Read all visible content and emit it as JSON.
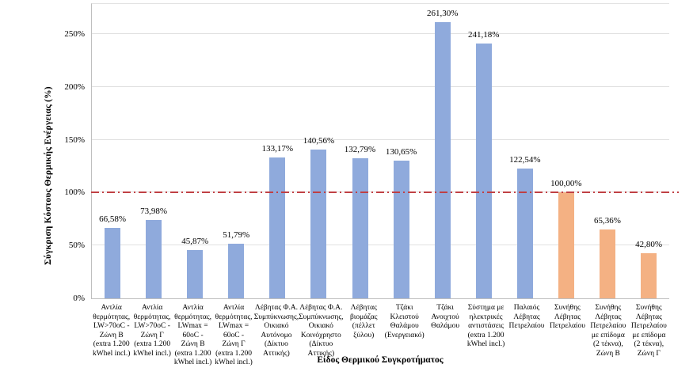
{
  "colors": {
    "bar_blue": "#8faadc",
    "bar_orange": "#f4b183",
    "reference_red": "#c04044",
    "gridline": "#e0e0e0",
    "axis_line": "#bfbfbf"
  },
  "chart_data": {
    "type": "bar",
    "title": "",
    "xlabel": "Είδος Θερμικού Συγκροτήματος",
    "ylabel": "Σύγκριση Κόστους Θερμικής Ενέργειας (%)",
    "ylim": [
      0,
      280
    ],
    "ytick_step": 50,
    "yticks": [
      {
        "value": 0,
        "label": "0%"
      },
      {
        "value": 50,
        "label": "50%"
      },
      {
        "value": 100,
        "label": "100%"
      },
      {
        "value": 150,
        "label": "150%"
      },
      {
        "value": 200,
        "label": "200%"
      },
      {
        "value": 250,
        "label": "250%"
      }
    ],
    "grid": true,
    "legend": "none",
    "reference_line": {
      "value": 100,
      "style": "dash-dot",
      "color": "#c04044"
    },
    "categories": [
      "Αντλία\nθερμότητας,\nLW>70oC -\nΖώνη Β\n(extra 1.200\nkWhel incl.)",
      "Αντλία\nθερμότητας,\nLW>70oC -\nΖώνη Γ\n(extra 1.200\nkWhel incl.)",
      "Αντλία\nθερμότητας,\nLWmax =\n60oC -\nΖώνη Β\n(extra 1.200\nkWhel incl.)",
      "Αντλία\nθερμότητας,\nLWmax =\n60oC -\nΖώνη Γ\n(extra 1.200\nkWhel incl.)",
      "Λέβητας Φ.Α.\nΣυμπύκνωσης,\nΟικιακό\nΑυτόνομο\n(Δίκτυο\nΑττικής)",
      "Λέβητας Φ.Α.\nΣυμπύκνωσης,\nΟικιακό\nΚοινόχρηστο\n(Δίκτυο\nΑττικής)",
      "Λέβητας\nβιομάζας\n(πέλλετ ξύλου)",
      "Τζάκι\nΚλειστού\nΘαλάμου\n(Ενεργειακό)",
      "Τζάκι\nΑνοιχτού\nΘαλάμου",
      "Σύστημα με\nηλεκτρικές\nαντιστάσεις\n(extra 1.200\nkWhel incl.)",
      "Παλαιός\nΛέβητας\nΠετρελαίου",
      "Συνήθης\nΛέβητας\nΠετρελαίου",
      "Συνήθης\nΛέβητας\nΠετρελαίου\nμε επίδομα\n(2 τέκνα),\nΖώνη Β",
      "Συνήθης\nΛέβητας\nΠετρελαίου\nμε επίδομα\n(2 τέκνα),\nΖώνη Γ"
    ],
    "values": [
      66.58,
      73.98,
      45.87,
      51.79,
      133.17,
      140.56,
      132.79,
      130.65,
      261.3,
      241.18,
      122.54,
      100.0,
      65.36,
      42.8
    ],
    "value_labels": [
      "66,58%",
      "73,98%",
      "45,87%",
      "51,79%",
      "133,17%",
      "140,56%",
      "132,79%",
      "130,65%",
      "261,30%",
      "241,18%",
      "122,54%",
      "100,00%",
      "65,36%",
      "42,80%"
    ],
    "bar_colors": [
      "#8faadc",
      "#8faadc",
      "#8faadc",
      "#8faadc",
      "#8faadc",
      "#8faadc",
      "#8faadc",
      "#8faadc",
      "#8faadc",
      "#8faadc",
      "#8faadc",
      "#f4b183",
      "#f4b183",
      "#f4b183"
    ]
  }
}
